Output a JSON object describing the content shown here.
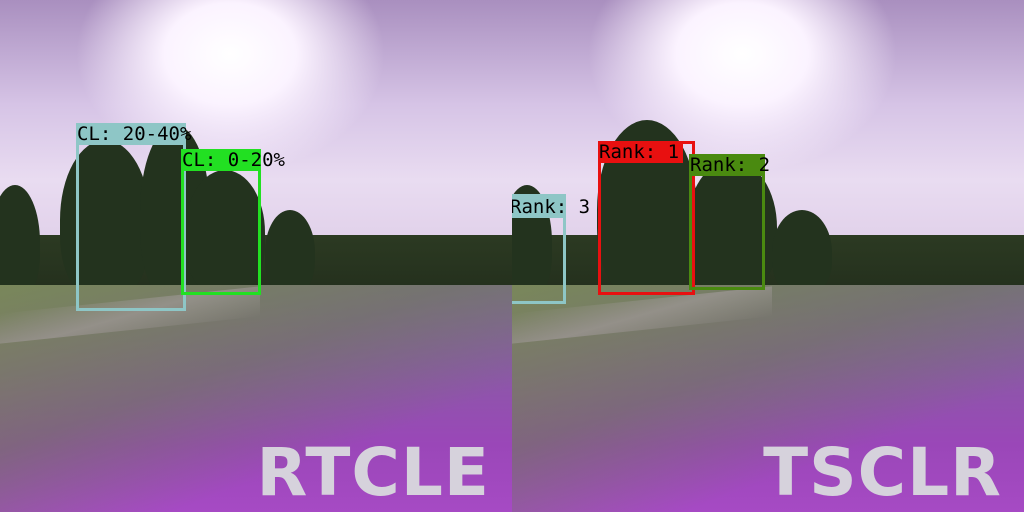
{
  "left_panel": {
    "method_label": "RTCLE",
    "detections": [
      {
        "label": "CL: 20-40%",
        "color": "#8ec6c6"
      },
      {
        "label": "CL: 0-20%",
        "color": "#22e022"
      }
    ]
  },
  "right_panel": {
    "method_label": "TSCLR",
    "detections": [
      {
        "label": "Rank: 1",
        "color": "#e81010"
      },
      {
        "label": "Rank: 2",
        "color": "#4a8a10"
      },
      {
        "label": "Rank: 3",
        "color": "#8ec6c6"
      }
    ]
  }
}
